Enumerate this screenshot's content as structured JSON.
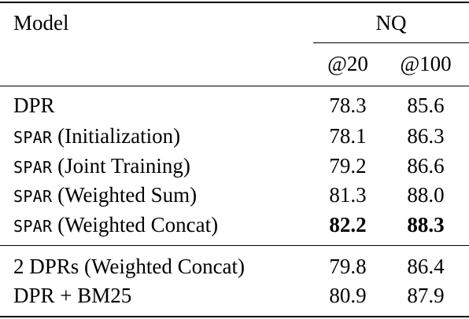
{
  "header": {
    "model_label": "Model",
    "group_label": "NQ",
    "col1_label": "@20",
    "col2_label": "@100"
  },
  "rows": [
    {
      "prefix": "",
      "name": "DPR",
      "v20": "78.3",
      "v100": "85.6"
    },
    {
      "prefix": "SPAR",
      "name": " (Initialization)",
      "v20": "78.1",
      "v100": "86.3"
    },
    {
      "prefix": "SPAR",
      "name": " (Joint Training)",
      "v20": "79.2",
      "v100": "86.6"
    },
    {
      "prefix": "SPAR",
      "name": " (Weighted Sum)",
      "v20": "81.3",
      "v100": "88.0"
    },
    {
      "prefix": "SPAR",
      "name": " (Weighted Concat)",
      "v20": "82.2",
      "v100": "88.3"
    },
    {
      "prefix": "",
      "name": "2 DPRs (Weighted Concat)",
      "v20": "79.8",
      "v100": "86.4"
    },
    {
      "prefix": "",
      "name": "DPR + BM25",
      "v20": "80.9",
      "v100": "87.9"
    }
  ]
}
